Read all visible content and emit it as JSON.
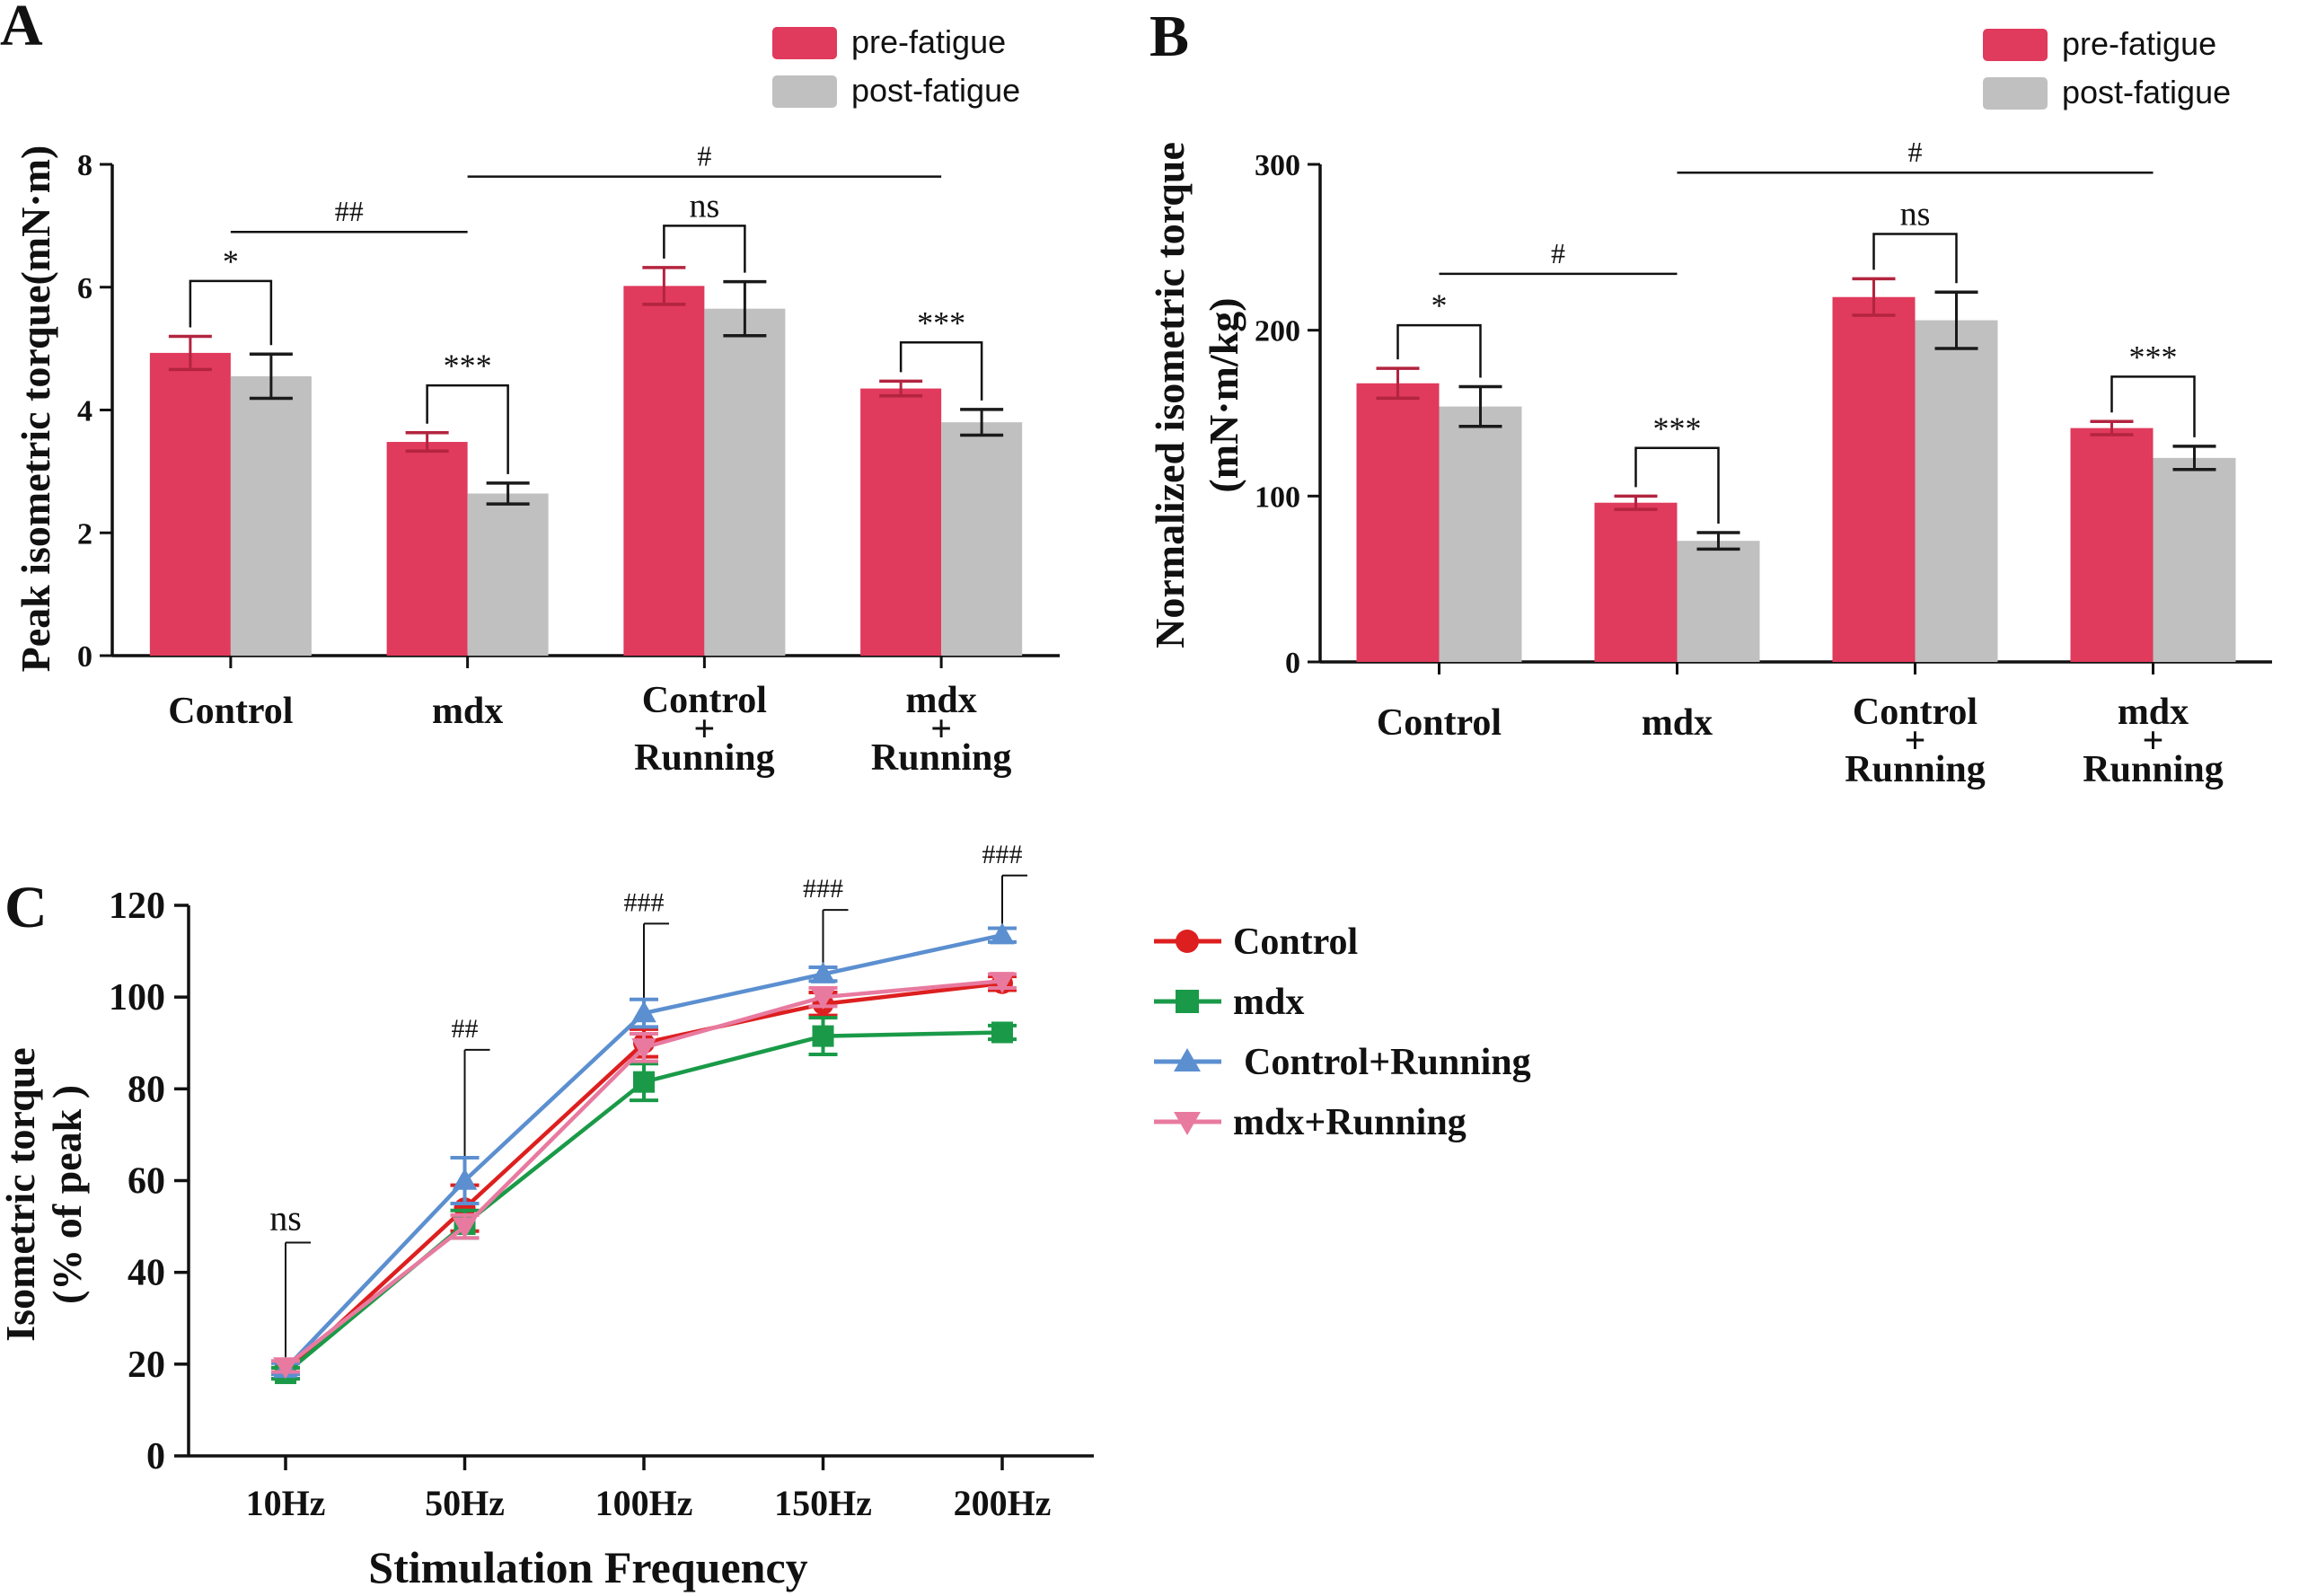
{
  "chart_data": [
    {
      "panel_label": "A",
      "type": "bar",
      "ylabel": "Peak isometric torque(mN·m)",
      "ylim": [
        0,
        8
      ],
      "yticks": [
        "0",
        "2",
        "4",
        "6",
        "8"
      ],
      "categories": [
        {
          "lines": [
            "Control"
          ]
        },
        {
          "lines": [
            "mdx"
          ]
        },
        {
          "lines": [
            "Control",
            "+",
            "Running"
          ]
        },
        {
          "lines": [
            "mdx",
            "+",
            "Running"
          ]
        }
      ],
      "series": [
        {
          "name": "pre-fatigue",
          "color": "#e03a5c",
          "values": [
            4.93,
            3.48,
            6.02,
            4.35
          ],
          "errors": [
            0.27,
            0.15,
            0.3,
            0.12
          ]
        },
        {
          "name": "post-fatigue",
          "color": "#c0c0c0",
          "values": [
            4.55,
            2.64,
            5.65,
            3.8
          ],
          "errors": [
            0.36,
            0.17,
            0.44,
            0.21
          ]
        }
      ],
      "legend_position": "top-right",
      "annotations": [
        {
          "kind": "within",
          "group": 0,
          "text": "*",
          "y": 6.1
        },
        {
          "kind": "within",
          "group": 1,
          "text": "***",
          "y": 4.4
        },
        {
          "kind": "within",
          "group": 2,
          "text": "ns",
          "y": 7.0
        },
        {
          "kind": "within",
          "group": 3,
          "text": "***",
          "y": 5.1
        },
        {
          "kind": "between",
          "from": 0,
          "to": 1,
          "text": "##",
          "y": 6.9
        },
        {
          "kind": "between",
          "from": 1,
          "to": 3,
          "text": "#",
          "y": 7.8
        }
      ]
    },
    {
      "panel_label": "B",
      "type": "bar",
      "ylabel": "Normalized isometric torque",
      "ylabel2": "(mN·m/kg)",
      "ylim": [
        0,
        300
      ],
      "yticks": [
        "0",
        "100",
        "200",
        "300"
      ],
      "categories": [
        {
          "lines": [
            "Control"
          ]
        },
        {
          "lines": [
            "mdx"
          ]
        },
        {
          "lines": [
            "Control",
            "+",
            "Running"
          ]
        },
        {
          "lines": [
            "mdx",
            "+",
            "Running"
          ]
        }
      ],
      "series": [
        {
          "name": "pre-fatigue",
          "color": "#e03a5c",
          "values": [
            168,
            96,
            220,
            141
          ],
          "errors": [
            9,
            4,
            11,
            4
          ]
        },
        {
          "name": "post-fatigue",
          "color": "#c0c0c0",
          "values": [
            154,
            73,
            206,
            123
          ],
          "errors": [
            12,
            5,
            17,
            7
          ]
        }
      ],
      "legend_position": "top-right",
      "annotations": [
        {
          "kind": "within",
          "group": 0,
          "text": "*",
          "y": 203
        },
        {
          "kind": "within",
          "group": 1,
          "text": "***",
          "y": 129
        },
        {
          "kind": "within",
          "group": 2,
          "text": "ns",
          "y": 258
        },
        {
          "kind": "within",
          "group": 3,
          "text": "***",
          "y": 172
        },
        {
          "kind": "between",
          "from": 0,
          "to": 1,
          "text": "#",
          "y": 234
        },
        {
          "kind": "between",
          "from": 1,
          "to": 3,
          "text": "#",
          "y": 295
        }
      ]
    },
    {
      "panel_label": "C",
      "type": "line",
      "xlabel": "Stimulation Frequency",
      "ylabel": "Isometric torque",
      "ylabel2": "(% of peak )",
      "ylim": [
        0,
        120
      ],
      "yticks": [
        "0",
        "20",
        "40",
        "60",
        "80",
        "100",
        "120"
      ],
      "x": [
        "10Hz",
        "50Hz",
        "100Hz",
        "150Hz",
        "200Hz"
      ],
      "series": [
        {
          "name": "Control",
          "color": "#dd1f1f",
          "marker": "circle",
          "values": [
            18,
            54,
            90,
            98.5,
            103
          ],
          "errors": [
            1.2,
            5,
            3,
            2.5,
            1.5
          ]
        },
        {
          "name": "mdx",
          "color": "#1a9a48",
          "marker": "square",
          "values": [
            18,
            50.5,
            81.5,
            91.5,
            92.3
          ],
          "errors": [
            1.2,
            3,
            4,
            4,
            1.5
          ]
        },
        {
          "name": "Control+Running",
          "color": "#5b8fd0",
          "marker": "triangle-up",
          "values": [
            19,
            60,
            96.5,
            105,
            113.5
          ],
          "errors": [
            1.2,
            5,
            3,
            1.5,
            1.5
          ]
        },
        {
          "name": "mdx+Running",
          "color": "#e87aa0",
          "marker": "triangle-down",
          "values": [
            19.5,
            50,
            89,
            100,
            103.5
          ],
          "errors": [
            1.2,
            2.5,
            3,
            2,
            1.5
          ]
        }
      ],
      "significance": [
        {
          "x_index": 0,
          "text": "ns",
          "top": 46.5
        },
        {
          "x_index": 1,
          "text": "##",
          "top": 88.5
        },
        {
          "x_index": 2,
          "text": "###",
          "top": 116
        },
        {
          "x_index": 3,
          "text": "###",
          "top": 119
        },
        {
          "x_index": 4,
          "text": "###",
          "top": 126.5
        }
      ],
      "legend_position": "right"
    }
  ]
}
